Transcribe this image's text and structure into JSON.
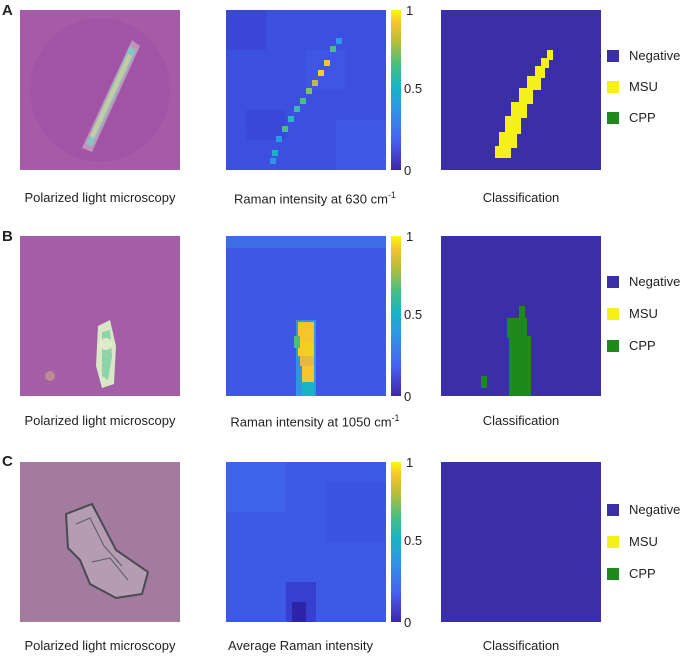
{
  "panels": [
    {
      "letter": "A",
      "micro_caption": "Polarized light microscopy",
      "heat_caption_main": "Raman intensity at 630 cm",
      "heat_caption_sup": "-1",
      "cls_caption": "Classification",
      "colorbar_ticks": [
        "1",
        "0.5",
        "0"
      ]
    },
    {
      "letter": "B",
      "micro_caption": "Polarized light microscopy",
      "heat_caption_main": "Raman intensity at 1050 cm",
      "heat_caption_sup": "-1",
      "cls_caption": "Classification",
      "colorbar_ticks": [
        "1",
        "0.5",
        "0"
      ]
    },
    {
      "letter": "C",
      "micro_caption": "Polarized light microscopy",
      "heat_caption_main": "Average Raman intensity",
      "heat_caption_sup": "",
      "cls_caption": "Classification",
      "colorbar_ticks": [
        "1",
        "0.5",
        "0"
      ]
    }
  ],
  "legend": [
    {
      "label": "Negative",
      "color": "#3a2fa6"
    },
    {
      "label": "MSU",
      "color": "#f5f01a"
    },
    {
      "label": "CPP",
      "color": "#1e8a1e"
    }
  ]
}
